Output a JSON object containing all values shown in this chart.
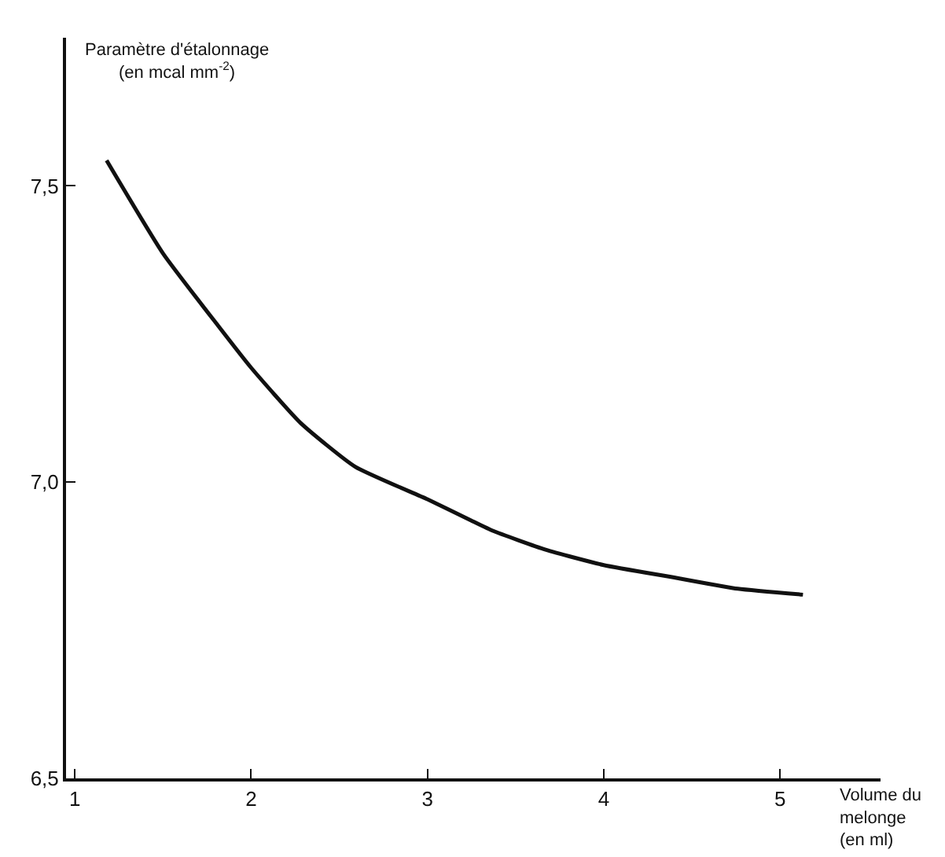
{
  "chart_data": {
    "type": "line",
    "xlabel": "Volume du\nmelonge\n(en ml)",
    "ylabel": "Paramètre d'étalonnage\n(en mcal mm$^{-2}$)",
    "series": [
      {
        "color": "#111111",
        "x": [
          1.18,
          1.5,
          1.81,
          2.0,
          2.28,
          2.59,
          3.0,
          3.25,
          3.37,
          3.67,
          4.0,
          4.4,
          4.76,
          5.13
        ],
        "values": [
          7.543,
          7.386,
          7.265,
          7.193,
          7.1,
          7.026,
          6.971,
          6.935,
          6.918,
          6.886,
          6.86,
          6.839,
          6.82,
          6.81
        ]
      }
    ],
    "xlim": [
      0.95,
      5.57
    ],
    "ylim": [
      6.5,
      7.75
    ],
    "xticks": [
      1,
      2,
      3,
      4,
      5
    ],
    "yticks": [
      {
        "value": 6.5,
        "label": "6,5"
      },
      {
        "value": 7.0,
        "label": "7,0"
      },
      {
        "value": 7.5,
        "label": "7,5"
      }
    ],
    "marker": "none",
    "line_style": "solid"
  }
}
